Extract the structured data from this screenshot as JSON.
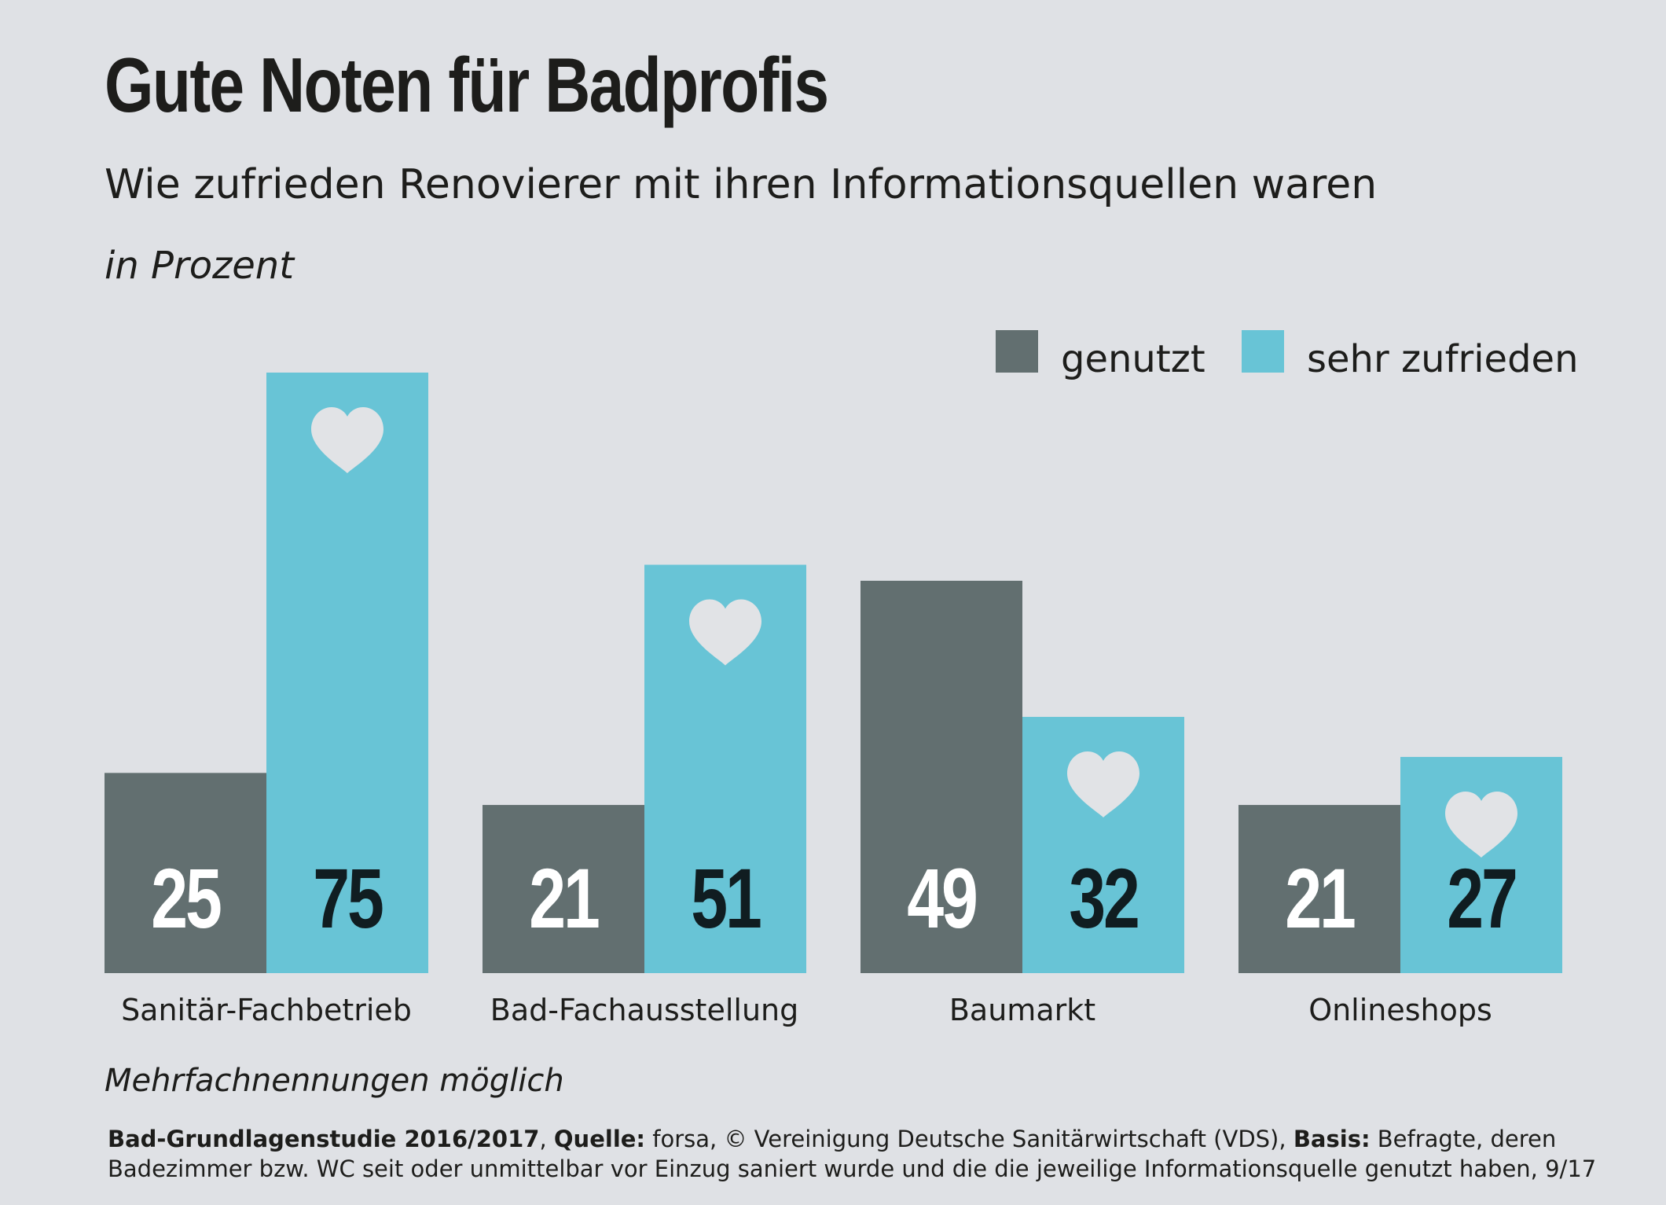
{
  "title": "Gute Noten für Badprofis",
  "subtitle": "Wie zufrieden Renovierer mit ihren Informationsquellen waren",
  "unit_label": "in Prozent",
  "colors": {
    "genutzt": "#626f70",
    "sehr_zufrieden": "#68c4d6",
    "background": "#dfe1e5",
    "heart": "#e1e3e6"
  },
  "chart_data": {
    "type": "bar",
    "categories": [
      "Sanitär-Fachbetrieb",
      "Bad-Fachausstellung",
      "Baumarkt",
      "Onlineshops"
    ],
    "series": [
      {
        "name": "genutzt",
        "values": [
          25,
          21,
          49,
          21
        ]
      },
      {
        "name": "sehr zufrieden",
        "values": [
          75,
          51,
          32,
          27
        ]
      }
    ],
    "ylim": [
      0,
      75
    ],
    "grid": false,
    "legend_position": "top-right",
    "marker": "heart-icon on sehr zufrieden bars"
  },
  "footnote": "Mehrfachnennungen möglich",
  "source": {
    "study_label": "Bad-Grundlagenstudie 2016/2017",
    "sep1": ", ",
    "source_label": "Quelle:",
    "source_text": " forsa, © Vereinigung Deutsche Sanitärwirtschaft (VDS), ",
    "basis_label": "Basis:",
    "basis_text": " Befragte, deren Badezimmer bzw. WC seit oder unmittelbar vor Einzug saniert wurde und die die jeweilige Informationsquelle genutzt haben, 9/17"
  }
}
